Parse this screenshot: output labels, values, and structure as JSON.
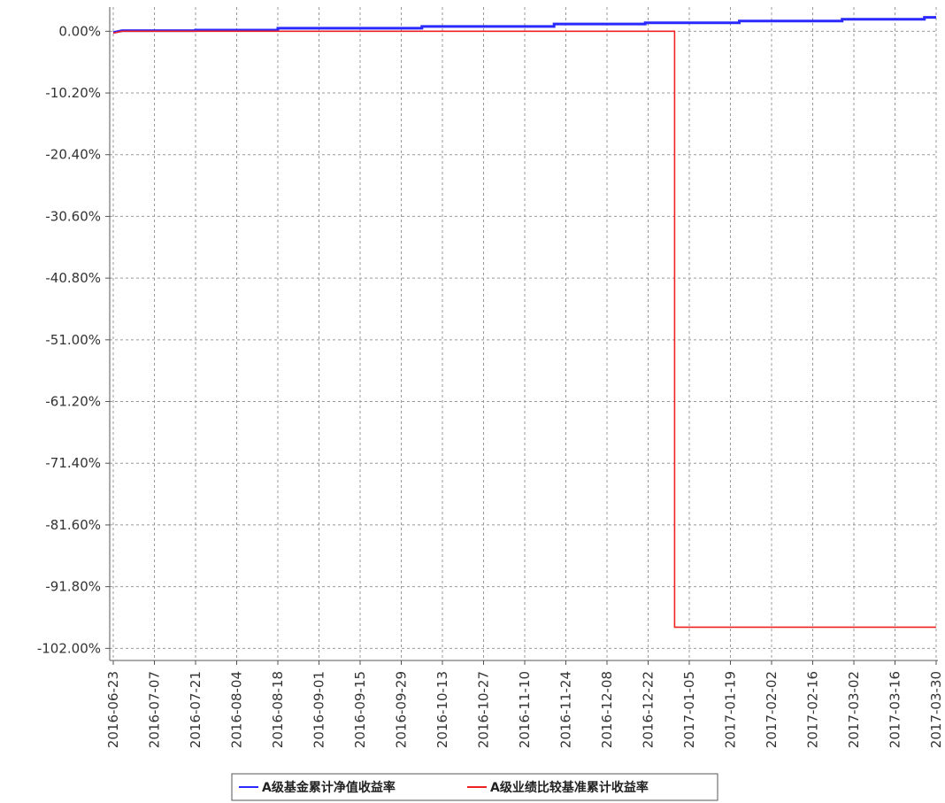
{
  "chart_data": {
    "type": "line",
    "title": "",
    "xlabel": "",
    "ylabel": "",
    "ylim": [
      -104.0,
      4.0
    ],
    "x_ticks": [
      "2016-06-23",
      "2016-07-07",
      "2016-07-21",
      "2016-08-04",
      "2016-08-18",
      "2016-09-01",
      "2016-09-15",
      "2016-09-29",
      "2016-10-13",
      "2016-10-27",
      "2016-11-10",
      "2016-11-24",
      "2016-12-08",
      "2016-12-22",
      "2017-01-05",
      "2017-01-19",
      "2017-02-02",
      "2017-02-16",
      "2017-03-02",
      "2017-03-16",
      "2017-03-30"
    ],
    "y_ticks": [
      0.0,
      -10.2,
      -20.4,
      -30.6,
      -40.8,
      -51.0,
      -61.2,
      -71.4,
      -81.6,
      -91.8,
      -102.0
    ],
    "y_tick_labels": [
      "0.00%",
      "-10.20%",
      "-20.40%",
      "-30.60%",
      "-40.80%",
      "-51.00%",
      "-61.20%",
      "-71.40%",
      "-81.60%",
      "-91.80%",
      "-102.00%"
    ],
    "grid": true,
    "legend_position": "bottom",
    "colors": {
      "series_a": "#2a2aff",
      "series_b": "#ee2222",
      "grid": "#999999",
      "axis": "#555555"
    },
    "series": [
      {
        "name": "A级基金累计净值收益率",
        "color": "#2a2aff",
        "points": [
          [
            "2016-06-23",
            -0.2
          ],
          [
            "2016-06-26",
            0.1
          ],
          [
            "2016-07-21",
            0.1
          ],
          [
            "2016-07-21",
            0.2
          ],
          [
            "2016-08-18",
            0.2
          ],
          [
            "2016-08-18",
            0.5
          ],
          [
            "2016-10-06",
            0.5
          ],
          [
            "2016-10-06",
            0.8
          ],
          [
            "2016-11-20",
            0.8
          ],
          [
            "2016-11-20",
            1.2
          ],
          [
            "2016-12-21",
            1.2
          ],
          [
            "2016-12-21",
            1.4
          ],
          [
            "2017-01-22",
            1.4
          ],
          [
            "2017-01-22",
            1.7
          ],
          [
            "2017-02-26",
            1.7
          ],
          [
            "2017-02-26",
            2.0
          ],
          [
            "2017-03-26",
            2.0
          ],
          [
            "2017-03-26",
            2.3
          ],
          [
            "2017-03-30",
            2.3
          ]
        ]
      },
      {
        "name": "A级业绩比较基准累计收益率",
        "color": "#ee2222",
        "points": [
          [
            "2016-06-23",
            -0.3
          ],
          [
            "2016-06-26",
            0.0
          ],
          [
            "2016-12-31",
            0.0
          ],
          [
            "2016-12-31",
            -98.5
          ],
          [
            "2017-03-30",
            -98.5
          ]
        ]
      }
    ]
  }
}
